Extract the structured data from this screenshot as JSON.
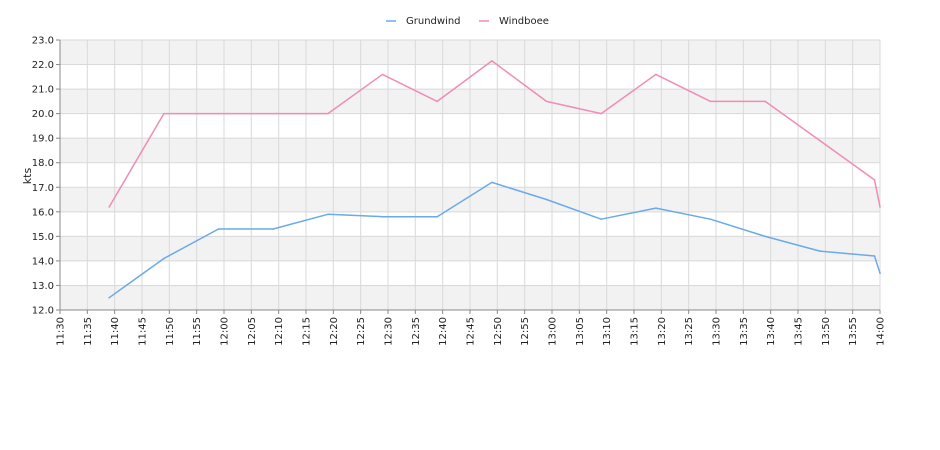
{
  "chart_data": {
    "type": "line",
    "ylabel": "kts",
    "ylim": [
      12.0,
      23.0
    ],
    "y_ticks": [
      "12.0",
      "13.0",
      "14.0",
      "15.0",
      "16.0",
      "17.0",
      "18.0",
      "19.0",
      "20.0",
      "21.0",
      "22.0",
      "23.0"
    ],
    "x_ticks": [
      "11:30",
      "11:35",
      "11:40",
      "11:45",
      "11:50",
      "11:55",
      "12:00",
      "12:05",
      "12:10",
      "12:15",
      "12:20",
      "12:25",
      "12:30",
      "12:35",
      "12:40",
      "12:45",
      "12:50",
      "12:55",
      "13:00",
      "13:05",
      "13:10",
      "13:15",
      "13:20",
      "13:25",
      "13:30",
      "13:35",
      "13:40",
      "13:45",
      "13:50",
      "13:55",
      "14:00"
    ],
    "xlim": [
      "11:30",
      "14:00"
    ],
    "grid": true,
    "legend_position": "top-center",
    "series": [
      {
        "name": "Grundwind",
        "color": "#6aaae8",
        "x": [
          "11:39",
          "11:49",
          "11:59",
          "12:09",
          "12:19",
          "12:29",
          "12:39",
          "12:49",
          "12:59",
          "13:09",
          "13:19",
          "13:29",
          "13:39",
          "13:49",
          "13:59",
          "14:00"
        ],
        "values": [
          12.5,
          14.1,
          15.3,
          15.3,
          15.9,
          15.8,
          15.8,
          17.2,
          16.5,
          15.7,
          16.15,
          15.7,
          15.0,
          14.4,
          14.2,
          13.5
        ]
      },
      {
        "name": "Windboee",
        "color": "#f08cb8",
        "x": [
          "11:39",
          "11:49",
          "11:59",
          "12:09",
          "12:19",
          "12:29",
          "12:39",
          "12:49",
          "12:59",
          "13:09",
          "13:19",
          "13:29",
          "13:39",
          "13:49",
          "13:59",
          "14:00"
        ],
        "values": [
          16.2,
          20.0,
          20.0,
          20.0,
          20.0,
          21.6,
          20.5,
          22.15,
          20.5,
          20.0,
          21.6,
          20.5,
          20.5,
          18.9,
          17.3,
          16.2
        ]
      }
    ]
  }
}
